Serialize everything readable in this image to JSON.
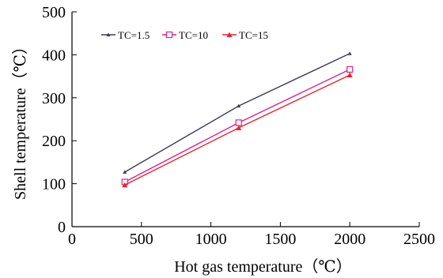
{
  "chart_data": {
    "type": "line",
    "xlabel": "Hot gas temperature（℃）",
    "ylabel": "Shell temperature（℃）",
    "xlim": [
      0,
      2500
    ],
    "ylim": [
      0,
      500
    ],
    "xticks": [
      0,
      500,
      1000,
      1500,
      2000,
      2500
    ],
    "yticks": [
      0,
      100,
      200,
      300,
      400,
      500
    ],
    "grid": false,
    "legend_position": "top-left",
    "series": [
      {
        "name": "TC=1.5",
        "color": "#3c3c5a",
        "marker": "triangle-small",
        "x": [
          380,
          1200,
          2000
        ],
        "y": [
          127,
          281,
          403
        ]
      },
      {
        "name": "TC=10",
        "color": "#e0208c",
        "marker": "square-open",
        "x": [
          380,
          1200,
          2000
        ],
        "y": [
          104,
          242,
          366
        ]
      },
      {
        "name": "TC=15",
        "color": "#e8222b",
        "marker": "triangle-filled",
        "x": [
          380,
          1200,
          2000
        ],
        "y": [
          97,
          230,
          353
        ]
      }
    ]
  }
}
